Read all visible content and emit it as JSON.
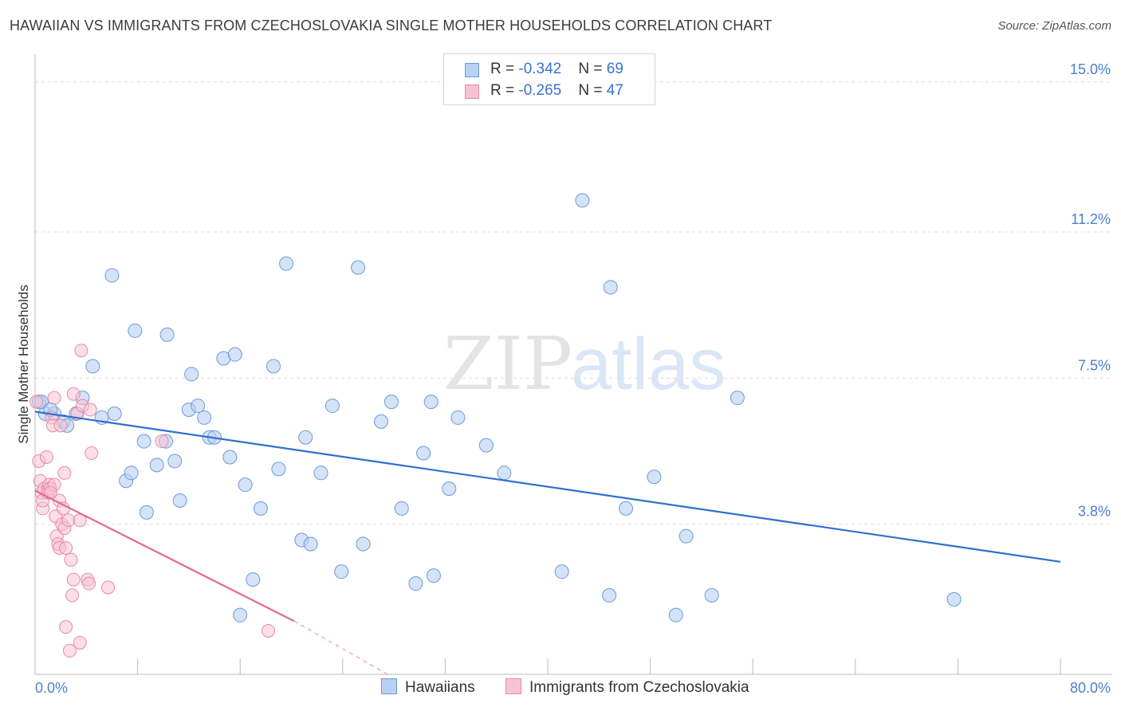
{
  "title": "HAWAIIAN VS IMMIGRANTS FROM CZECHOSLOVAKIA SINGLE MOTHER HOUSEHOLDS CORRELATION CHART",
  "source": "Source: ZipAtlas.com",
  "watermark": {
    "zip": "ZIP",
    "atlas": "atlas"
  },
  "legend": {
    "rows": [
      {
        "r_label": "R = ",
        "r_value": "-0.342",
        "n_label": "N = ",
        "n_value": "69"
      },
      {
        "r_label": "R = ",
        "r_value": "-0.265",
        "n_label": "N = ",
        "n_value": "47"
      }
    ]
  },
  "bottom_legend": {
    "series1": "Hawaiians",
    "series2": "Immigrants from Czechoslovakia"
  },
  "colors": {
    "blue_fill": "#b8d0f2",
    "blue_stroke": "#6c9ad8",
    "blue_line": "#2f6fd1",
    "pink_fill": "#f7c3d4",
    "pink_stroke": "#e68aa8",
    "pink_line": "#e06a95",
    "grid": "#dddddd",
    "axis_text": "#4a7fd0"
  },
  "chart_data": {
    "type": "scatter",
    "title": "HAWAIIAN VS IMMIGRANTS FROM CZECHOSLOVAKIA SINGLE MOTHER HOUSEHOLDS CORRELATION CHART",
    "xlabel": "",
    "ylabel": "Single Mother Households",
    "xlim": [
      0,
      80
    ],
    "ylim": [
      0,
      15.5
    ],
    "x_tick_labels": [
      "0.0%",
      "80.0%"
    ],
    "y_ticks": [
      3.8,
      7.5,
      11.2,
      15.0
    ],
    "y_tick_labels": [
      "3.8%",
      "7.5%",
      "11.2%",
      "15.0%"
    ],
    "grid": true,
    "legend_position": "top-center",
    "series": [
      {
        "name": "Hawaiians",
        "color": "#6c9ad8",
        "trend": {
          "x": [
            0,
            80
          ],
          "y": [
            6.65,
            2.85
          ]
        },
        "points": [
          [
            0.3,
            6.9
          ],
          [
            0.8,
            6.6
          ],
          [
            1.5,
            6.6
          ],
          [
            2.2,
            6.4
          ],
          [
            2.5,
            6.3
          ],
          [
            3.2,
            6.6
          ],
          [
            3.7,
            7.0
          ],
          [
            4.5,
            7.8
          ],
          [
            5.2,
            6.5
          ],
          [
            6.2,
            6.6
          ],
          [
            6.0,
            10.1
          ],
          [
            7.1,
            4.9
          ],
          [
            7.5,
            5.1
          ],
          [
            7.8,
            8.7
          ],
          [
            8.5,
            5.9
          ],
          [
            8.7,
            4.1
          ],
          [
            9.5,
            5.3
          ],
          [
            10.2,
            5.9
          ],
          [
            10.3,
            8.6
          ],
          [
            10.9,
            5.4
          ],
          [
            11.3,
            4.4
          ],
          [
            12.0,
            6.7
          ],
          [
            12.2,
            7.6
          ],
          [
            12.7,
            6.8
          ],
          [
            13.2,
            6.5
          ],
          [
            13.6,
            6.0
          ],
          [
            14.0,
            6.0
          ],
          [
            14.7,
            8.0
          ],
          [
            15.2,
            5.5
          ],
          [
            15.6,
            8.1
          ],
          [
            16.4,
            4.8
          ],
          [
            17.0,
            2.4
          ],
          [
            17.6,
            4.2
          ],
          [
            16.0,
            1.5
          ],
          [
            18.6,
            7.8
          ],
          [
            19.0,
            5.2
          ],
          [
            19.6,
            10.4
          ],
          [
            20.8,
            3.4
          ],
          [
            21.5,
            3.3
          ],
          [
            21.1,
            6.0
          ],
          [
            22.3,
            5.1
          ],
          [
            23.2,
            6.8
          ],
          [
            23.9,
            2.6
          ],
          [
            25.2,
            10.3
          ],
          [
            25.6,
            3.3
          ],
          [
            27.0,
            6.4
          ],
          [
            27.8,
            6.9
          ],
          [
            28.6,
            4.2
          ],
          [
            29.7,
            2.3
          ],
          [
            30.3,
            5.6
          ],
          [
            30.9,
            6.9
          ],
          [
            31.1,
            2.5
          ],
          [
            32.3,
            4.7
          ],
          [
            33.0,
            6.5
          ],
          [
            35.2,
            5.8
          ],
          [
            36.6,
            5.1
          ],
          [
            41.1,
            2.6
          ],
          [
            42.7,
            12.0
          ],
          [
            44.8,
            2.0
          ],
          [
            44.9,
            9.8
          ],
          [
            46.1,
            4.2
          ],
          [
            48.3,
            5.0
          ],
          [
            50.0,
            1.5
          ],
          [
            50.8,
            3.5
          ],
          [
            52.8,
            2.0
          ],
          [
            54.8,
            7.0
          ],
          [
            71.7,
            1.9
          ],
          [
            0.5,
            6.9
          ],
          [
            1.2,
            6.7
          ]
        ]
      },
      {
        "name": "Immigrants from Czechoslovakia",
        "color": "#e68aa8",
        "trend": {
          "x": [
            0,
            20.2
          ],
          "y": [
            4.65,
            1.35
          ]
        },
        "trend_dashed": {
          "x": [
            20.2,
            27.5
          ],
          "y": [
            1.35,
            0.0
          ]
        },
        "points": [
          [
            0.1,
            6.9
          ],
          [
            0.3,
            5.4
          ],
          [
            0.4,
            4.9
          ],
          [
            0.5,
            4.6
          ],
          [
            0.6,
            4.2
          ],
          [
            0.6,
            4.4
          ],
          [
            0.7,
            4.7
          ],
          [
            0.9,
            5.5
          ],
          [
            1.0,
            4.7
          ],
          [
            1.0,
            4.6
          ],
          [
            1.1,
            4.8
          ],
          [
            1.2,
            4.7
          ],
          [
            1.3,
            6.5
          ],
          [
            1.4,
            6.3
          ],
          [
            1.5,
            7.0
          ],
          [
            1.5,
            4.8
          ],
          [
            1.6,
            4.0
          ],
          [
            1.7,
            3.5
          ],
          [
            1.8,
            3.3
          ],
          [
            1.9,
            3.2
          ],
          [
            1.9,
            4.4
          ],
          [
            2.0,
            6.3
          ],
          [
            2.1,
            3.8
          ],
          [
            2.2,
            4.2
          ],
          [
            2.3,
            3.7
          ],
          [
            2.3,
            5.1
          ],
          [
            2.4,
            1.2
          ],
          [
            2.4,
            3.2
          ],
          [
            2.6,
            3.9
          ],
          [
            2.7,
            0.6
          ],
          [
            2.8,
            2.9
          ],
          [
            2.9,
            2.0
          ],
          [
            3.0,
            7.1
          ],
          [
            3.0,
            2.4
          ],
          [
            3.3,
            6.6
          ],
          [
            3.5,
            3.9
          ],
          [
            3.5,
            0.8
          ],
          [
            3.6,
            8.2
          ],
          [
            3.7,
            6.8
          ],
          [
            4.1,
            2.4
          ],
          [
            4.2,
            2.3
          ],
          [
            4.3,
            6.7
          ],
          [
            4.4,
            5.6
          ],
          [
            5.7,
            2.2
          ],
          [
            9.9,
            5.9
          ],
          [
            18.2,
            1.1
          ],
          [
            1.2,
            4.6
          ]
        ]
      }
    ]
  }
}
